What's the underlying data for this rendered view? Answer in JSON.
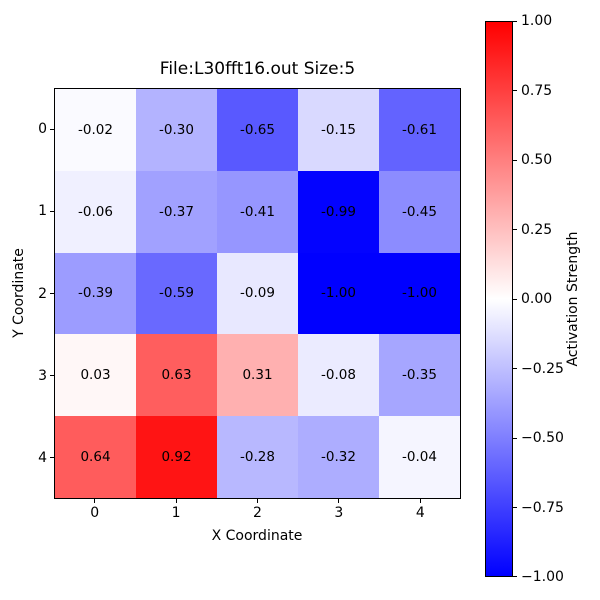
{
  "chart_data": {
    "type": "heatmap",
    "title": "File:L30fft16.out Size:5",
    "xlabel": "X Coordinate",
    "ylabel": "Y Coordinate",
    "x_ticks": [
      "0",
      "1",
      "2",
      "3",
      "4"
    ],
    "y_ticks": [
      "0",
      "1",
      "2",
      "3",
      "4"
    ],
    "vmin": -1.0,
    "vmax": 1.0,
    "colormap": "bwr",
    "grid": false,
    "values": [
      [
        -0.02,
        -0.3,
        -0.65,
        -0.15,
        -0.61
      ],
      [
        -0.06,
        -0.37,
        -0.41,
        -0.99,
        -0.45
      ],
      [
        -0.39,
        -0.59,
        -0.09,
        -1.0,
        -1.0
      ],
      [
        0.03,
        0.63,
        0.31,
        -0.08,
        -0.35
      ],
      [
        0.64,
        0.92,
        -0.28,
        -0.32,
        -0.04
      ]
    ],
    "cell_labels": [
      [
        "-0.02",
        "-0.30",
        "-0.65",
        "-0.15",
        "-0.61"
      ],
      [
        "-0.06",
        "-0.37",
        "-0.41",
        "-0.99",
        "-0.45"
      ],
      [
        "-0.39",
        "-0.59",
        "-0.09",
        "-1.00",
        "-1.00"
      ],
      [
        "0.03",
        "0.63",
        "0.31",
        "-0.08",
        "-0.35"
      ],
      [
        "0.64",
        "0.92",
        "-0.28",
        "-0.32",
        "-0.04"
      ]
    ],
    "cell_text_color": "#000000",
    "colorbar": {
      "label": "Activation Strength",
      "ticks": [
        "1.00",
        "0.75",
        "0.50",
        "0.25",
        "0.00",
        "−0.25",
        "−0.50",
        "−0.75",
        "−1.00"
      ],
      "color_top": "#ff0000",
      "color_mid": "#ffffff",
      "color_bottom": "#0000ff"
    }
  }
}
